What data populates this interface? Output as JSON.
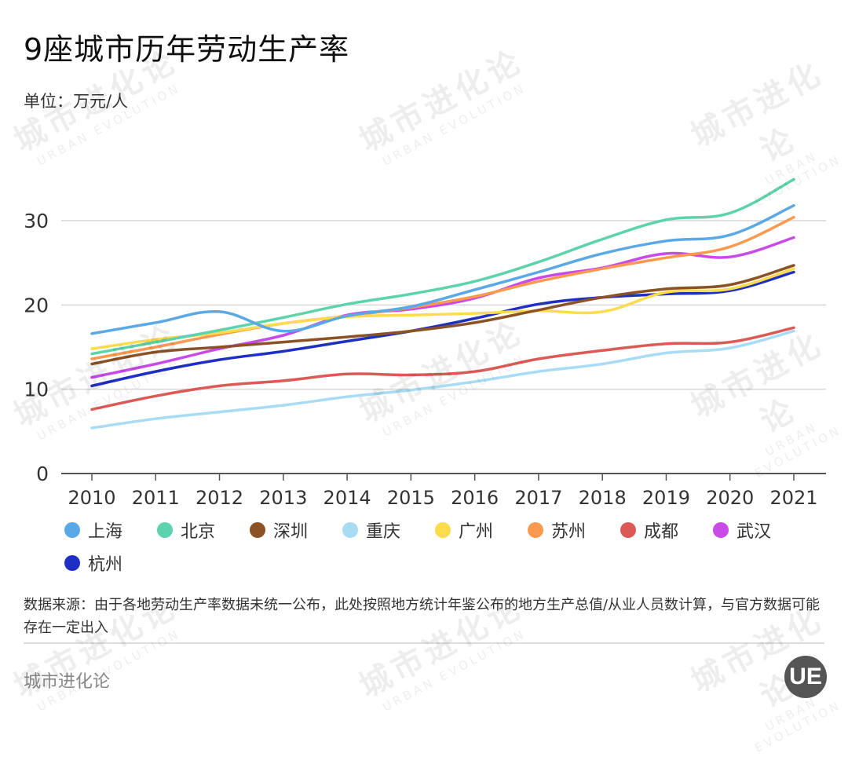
{
  "header": {
    "title": "9座城市历年劳动生产率",
    "unit": "单位：万元/人"
  },
  "chart_data": {
    "type": "line",
    "title": "9座城市历年劳动生产率",
    "xlabel": "",
    "ylabel": "万元/人",
    "x": [
      "2010",
      "2011",
      "2012",
      "2013",
      "2014",
      "2015",
      "2016",
      "2017",
      "2018",
      "2019",
      "2020",
      "2021"
    ],
    "ylim": [
      0,
      36
    ],
    "yticks": [
      0,
      10,
      20,
      30
    ],
    "grid": true,
    "legend_position": "bottom",
    "series": [
      {
        "name": "上海",
        "color": "#5aa9e6",
        "values": [
          16.6,
          17.9,
          19.2,
          16.9,
          18.7,
          19.8,
          21.8,
          23.9,
          26.1,
          27.6,
          28.3,
          31.8
        ]
      },
      {
        "name": "北京",
        "color": "#5dd3ad",
        "values": [
          14.2,
          15.6,
          17.0,
          18.5,
          20.1,
          21.3,
          22.8,
          25.1,
          27.8,
          30.1,
          30.9,
          34.9
        ]
      },
      {
        "name": "深圳",
        "color": "#8b5226",
        "values": [
          13.0,
          14.4,
          15.0,
          15.6,
          16.2,
          16.9,
          17.9,
          19.4,
          20.9,
          21.9,
          22.4,
          24.7
        ]
      },
      {
        "name": "重庆",
        "color": "#a8dcf5",
        "values": [
          5.4,
          6.5,
          7.3,
          8.1,
          9.1,
          9.9,
          10.9,
          12.1,
          13.0,
          14.3,
          14.9,
          16.9
        ]
      },
      {
        "name": "广州",
        "color": "#fcdb4c",
        "values": [
          14.8,
          15.9,
          16.7,
          17.8,
          18.6,
          18.8,
          19.0,
          19.3,
          19.2,
          21.5,
          21.9,
          24.3
        ]
      },
      {
        "name": "苏州",
        "color": "#fb9a4f",
        "values": [
          13.6,
          15.0,
          16.5,
          17.8,
          18.7,
          19.7,
          21.0,
          22.8,
          24.3,
          25.6,
          26.9,
          30.4
        ]
      },
      {
        "name": "成都",
        "color": "#dc5a55",
        "values": [
          7.6,
          9.2,
          10.4,
          11.0,
          11.8,
          11.7,
          12.1,
          13.6,
          14.6,
          15.4,
          15.6,
          17.3
        ]
      },
      {
        "name": "武汉",
        "color": "#c94ae8",
        "values": [
          11.4,
          13.0,
          14.8,
          16.4,
          18.8,
          19.5,
          20.8,
          23.2,
          24.4,
          26.1,
          25.7,
          28.0
        ]
      },
      {
        "name": "杭州",
        "color": "#1f2fc4",
        "values": [
          10.4,
          12.1,
          13.5,
          14.5,
          15.7,
          16.9,
          18.4,
          20.1,
          20.9,
          21.3,
          21.7,
          23.9
        ]
      }
    ]
  },
  "footer": {
    "source": "数据来源：由于各地劳动生产率数据未统一公布，此处按照地方统计年鉴公布的地方生产总值/从业人员数计算，与官方数据可能存在一定出入",
    "brand": "城市进化论",
    "logo_text": "UE"
  },
  "watermark": {
    "cn": "城市进化论",
    "en": "URBAN EVOLUTION"
  }
}
